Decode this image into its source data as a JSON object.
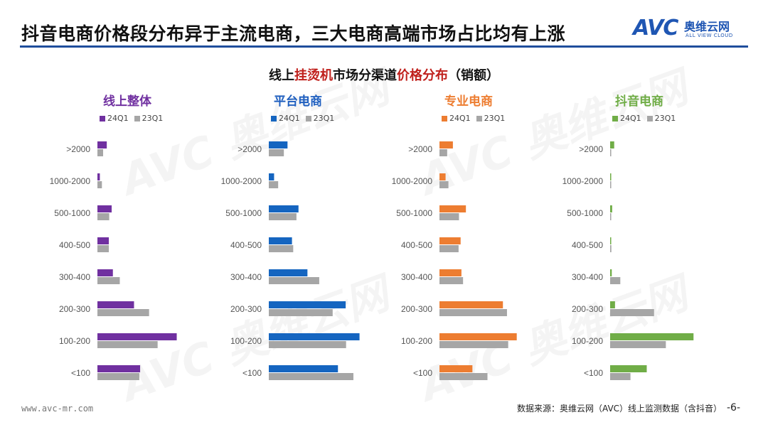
{
  "header": {
    "title": "抖音电商价格段分布异于主流电商，三大电商高端市场占比均有上涨",
    "logo": {
      "mark": "AVC",
      "name_cn": "奥维云网",
      "name_en": "ALL VIEW CLOUD"
    }
  },
  "subtitle": {
    "part1": "线上",
    "part2": "挂烫机",
    "part3": "市场分渠道",
    "part4": "价格分布",
    "part5": "（销额）"
  },
  "footer": {
    "website": "www.avc-mr.com",
    "source": "数据来源：奥维云网（AVC）线上监测数据（含抖音）",
    "page": "-6-"
  },
  "watermark": {
    "mark": "AVC",
    "cn": "奥维云网",
    "en": "ALL VIEW CLOUD"
  },
  "chart_data": [
    {
      "type": "bar",
      "orientation": "horizontal",
      "title": "线上整体",
      "title_color": "#7030a0",
      "categories": [
        ">2000",
        "1000-2000",
        "500-1000",
        "400-500",
        "300-400",
        "200-300",
        "100-200",
        "<100"
      ],
      "series": [
        {
          "name": "24Q1",
          "color": "#7030a0",
          "values": [
            2.3,
            0.6,
            3.5,
            2.8,
            3.8,
            9.0,
            19.5,
            10.5
          ]
        },
        {
          "name": "23Q1",
          "color": "#a6a6a6",
          "values": [
            1.4,
            1.1,
            2.9,
            2.8,
            5.5,
            12.7,
            14.8,
            10.3
          ]
        }
      ]
    },
    {
      "type": "bar",
      "orientation": "horizontal",
      "title": "平台电商",
      "title_color": "#1f5fbf",
      "categories": [
        ">2000",
        "1000-2000",
        "500-1000",
        "400-500",
        "300-400",
        "200-300",
        "100-200",
        "<100"
      ],
      "series": [
        {
          "name": "24Q1",
          "color": "#1565c0",
          "values": [
            4.6,
            1.3,
            7.3,
            5.7,
            9.5,
            18.9,
            22.3,
            17.0
          ]
        },
        {
          "name": "23Q1",
          "color": "#a6a6a6",
          "values": [
            3.7,
            2.3,
            6.8,
            6.0,
            12.4,
            15.7,
            19.0,
            20.8
          ]
        }
      ]
    },
    {
      "type": "bar",
      "orientation": "horizontal",
      "title": "专业电商",
      "title_color": "#ed7d31",
      "categories": [
        ">2000",
        "1000-2000",
        "500-1000",
        "400-500",
        "300-400",
        "200-300",
        "100-200",
        "<100"
      ],
      "series": [
        {
          "name": "24Q1",
          "color": "#ed7d31",
          "values": [
            3.3,
            1.5,
            6.5,
            5.2,
            5.4,
            15.6,
            19.0,
            8.1
          ]
        },
        {
          "name": "23Q1",
          "color": "#a6a6a6",
          "values": [
            1.9,
            2.2,
            4.8,
            4.7,
            5.8,
            16.6,
            16.9,
            11.8
          ]
        }
      ]
    },
    {
      "type": "bar",
      "orientation": "horizontal",
      "title": "抖音电商",
      "title_color": "#70ad47",
      "categories": [
        ">2000",
        "1000-2000",
        "500-1000",
        "400-500",
        "300-400",
        "200-300",
        "100-200",
        "<100"
      ],
      "series": [
        {
          "name": "24Q1",
          "color": "#70ad47",
          "values": [
            1.0,
            0.2,
            0.5,
            0.2,
            0.4,
            1.2,
            20.5,
            9.0
          ]
        },
        {
          "name": "23Q1",
          "color": "#a6a6a6",
          "values": [
            0.1,
            0.1,
            0.2,
            0.3,
            2.5,
            10.8,
            13.7,
            5.0
          ]
        }
      ]
    }
  ]
}
